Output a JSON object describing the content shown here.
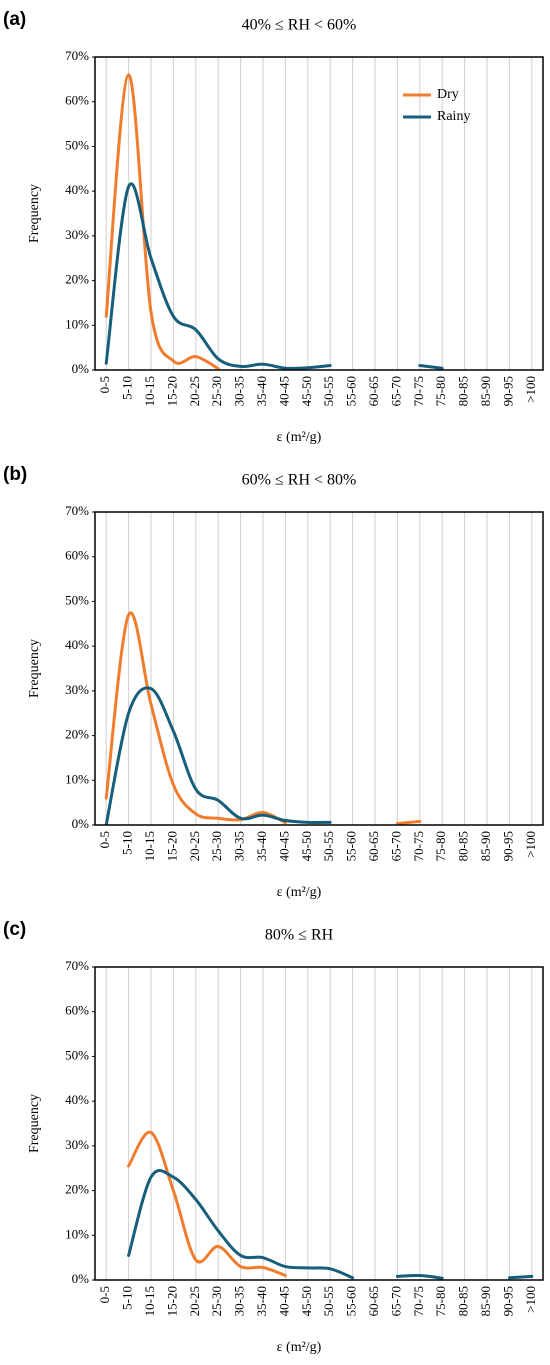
{
  "chart_data": [
    {
      "type": "line",
      "label": "(a)",
      "title": "40% ≤ RH < 60%",
      "y_label": "Frequency",
      "x_label": "ε (m²/g)",
      "categories": [
        "0-5",
        "5-10",
        "10-15",
        "15-20",
        "20-25",
        "25-30",
        "30-35",
        "35-40",
        "40-45",
        "45-50",
        "50-55",
        "55-60",
        "60-65",
        "65-70",
        "70-75",
        "75-80",
        "80-85",
        "85-90",
        "90-95",
        ">100"
      ],
      "series": [
        {
          "name": "Dry",
          "color": "#f07d2e",
          "values": [
            12,
            66,
            13,
            2,
            3,
            0.3,
            null,
            null,
            null,
            null,
            null,
            null,
            null,
            null,
            null,
            null,
            null,
            null,
            null,
            null
          ]
        },
        {
          "name": "Rainy",
          "color": "#175e7c",
          "values": [
            1.5,
            41,
            25,
            12,
            9,
            2.5,
            0.8,
            1.3,
            0.4,
            0.5,
            1,
            null,
            null,
            null,
            1,
            0.4,
            null,
            null,
            null,
            null
          ]
        }
      ],
      "ylim": [
        0,
        70
      ],
      "yticks": [
        {
          "value": 0,
          "label": "0%"
        },
        {
          "value": 10,
          "label": "10%"
        },
        {
          "value": 20,
          "label": "20%"
        },
        {
          "value": 30,
          "label": "30%"
        },
        {
          "value": 40,
          "label": "40%"
        },
        {
          "value": 50,
          "label": "50%"
        },
        {
          "value": 60,
          "label": "60%"
        },
        {
          "value": 70,
          "label": "70%"
        }
      ],
      "xgrid": true,
      "smooth": true,
      "legend": "upper right"
    },
    {
      "type": "line",
      "label": "(b)",
      "title": "60% ≤ RH < 80%",
      "y_label": "Frequency",
      "x_label": "ε (m²/g)",
      "categories": [
        "0-5",
        "5-10",
        "10-15",
        "15-20",
        "20-25",
        "25-30",
        "30-35",
        "35-40",
        "40-45",
        "45-50",
        "50-55",
        "55-60",
        "60-65",
        "65-70",
        "70-75",
        "75-80",
        "80-85",
        "85-90",
        "90-95",
        ">100"
      ],
      "series": [
        {
          "color": "#f07d2e",
          "values": [
            6,
            47,
            27,
            9,
            2.5,
            1.5,
            1.2,
            2.8,
            0.5,
            null,
            null,
            null,
            null,
            0.3,
            0.8,
            null,
            null,
            null,
            null,
            null
          ]
        },
        {
          "color": "#175e7c",
          "values": [
            0,
            25,
            30.5,
            21,
            8,
            5.5,
            1.5,
            2.2,
            1,
            0.6,
            0.6,
            null,
            null,
            null,
            null,
            null,
            null,
            null,
            null,
            null
          ]
        }
      ],
      "ylim": [
        0,
        70
      ],
      "yticks": [
        {
          "value": 0,
          "label": "0%"
        },
        {
          "value": 10,
          "label": "10%"
        },
        {
          "value": 20,
          "label": "20%"
        },
        {
          "value": 30,
          "label": "30%"
        },
        {
          "value": 40,
          "label": "40%"
        },
        {
          "value": 50,
          "label": "50%"
        },
        {
          "value": 60,
          "label": "60%"
        },
        {
          "value": 70,
          "label": "70%"
        }
      ],
      "xgrid": true,
      "smooth": true
    },
    {
      "type": "line",
      "label": "(c)",
      "title": "80%  ≤ RH",
      "y_label": "Frequency",
      "x_label": "ε (m²/g)",
      "categories": [
        "0-5",
        "5-10",
        "10-15",
        "15-20",
        "20-25",
        "25-30",
        "30-35",
        "35-40",
        "40-45",
        "45-50",
        "50-55",
        "55-60",
        "60-65",
        "65-70",
        "70-75",
        "75-80",
        "80-85",
        "85-90",
        "90-95",
        ">100"
      ],
      "series": [
        {
          "color": "#f07d2e",
          "values": [
            null,
            25.5,
            33,
            20,
            4.5,
            7.5,
            3,
            2.8,
            1,
            null,
            null,
            null,
            null,
            null,
            null,
            null,
            null,
            null,
            null,
            null
          ]
        },
        {
          "color": "#175e7c",
          "values": [
            null,
            5.5,
            23,
            23,
            18,
            11,
            5.5,
            5,
            3,
            2.7,
            2.5,
            0.5,
            null,
            0.8,
            1,
            0.4,
            null,
            null,
            0.5,
            0.8
          ]
        }
      ],
      "ylim": [
        0,
        70
      ],
      "yticks": [
        {
          "value": 0,
          "label": "0%"
        },
        {
          "value": 10,
          "label": "10%"
        },
        {
          "value": 20,
          "label": "20%"
        },
        {
          "value": 30,
          "label": "30%"
        },
        {
          "value": 40,
          "label": "40%"
        },
        {
          "value": 50,
          "label": "50%"
        },
        {
          "value": 60,
          "label": "60%"
        },
        {
          "value": 70,
          "label": "70%"
        }
      ],
      "xgrid": true,
      "smooth": true
    }
  ]
}
